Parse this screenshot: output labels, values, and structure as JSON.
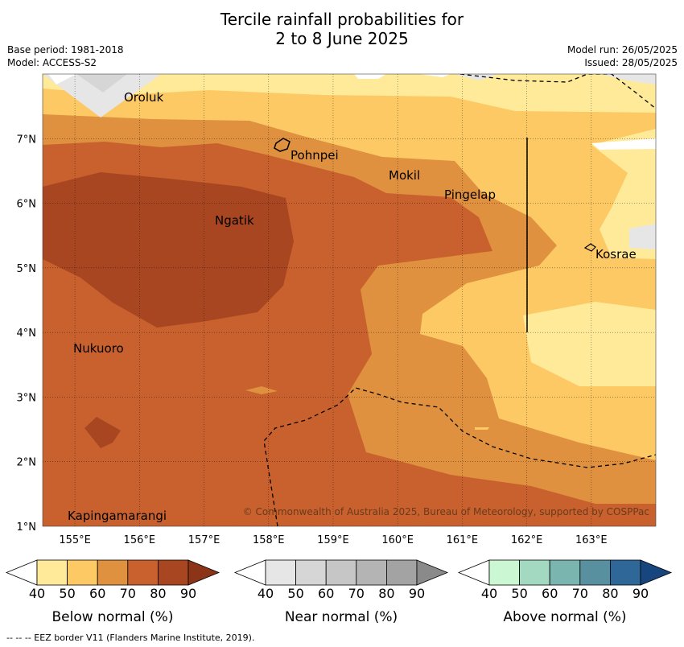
{
  "title": {
    "line1": "Tercile rainfall probabilities for",
    "line2": "2 to 8 June 2025"
  },
  "meta": {
    "base_period": "Base period: 1981-2018",
    "model": "Model: ACCESS-S2",
    "model_run": "Model run: 26/05/2025",
    "issued": "Issued: 28/05/2025"
  },
  "map": {
    "lon_range": [
      154.5,
      164.0
    ],
    "lat_range": [
      1.0,
      8.0
    ],
    "lon_ticks": [
      "155°E",
      "156°E",
      "157°E",
      "158°E",
      "159°E",
      "160°E",
      "161°E",
      "162°E",
      "163°E"
    ],
    "lat_ticks": [
      "1°N",
      "2°N",
      "3°N",
      "4°N",
      "5°N",
      "6°N",
      "7°N"
    ],
    "places": [
      {
        "name": "Oroluk"
      },
      {
        "name": "Pohnpei"
      },
      {
        "name": "Mokil"
      },
      {
        "name": "Pingelap"
      },
      {
        "name": "Ngatik"
      },
      {
        "name": "Kosrae"
      },
      {
        "name": "Nukuoro"
      },
      {
        "name": "Kapingamarangi"
      }
    ],
    "copyright": "© Commonwealth of Australia 2025, Bureau of Meteorology, supported by COSPPac"
  },
  "colorbars": [
    {
      "label": "Below normal (%)",
      "ticks": [
        "40",
        "50",
        "60",
        "70",
        "80",
        "90"
      ],
      "colors": [
        "#ffea99",
        "#fdc965",
        "#e0913f",
        "#c8612e",
        "#a84622",
        "#8c3418"
      ]
    },
    {
      "label": "Near normal (%)",
      "ticks": [
        "40",
        "50",
        "60",
        "70",
        "80",
        "90"
      ],
      "colors": [
        "#e6e6e6",
        "#d6d6d6",
        "#c6c6c6",
        "#b4b4b4",
        "#a3a3a3",
        "#8a8a8a"
      ]
    },
    {
      "label": "Above normal (%)",
      "ticks": [
        "40",
        "50",
        "60",
        "70",
        "80",
        "90"
      ],
      "colors": [
        "#ccf7d3",
        "#a3d9c0",
        "#7bb5b0",
        "#5890a0",
        "#2f6798",
        "#17457e"
      ]
    }
  ],
  "footnote": "--  --  -- EEZ border V11 (Flanders Marine Institute, 2019)."
}
